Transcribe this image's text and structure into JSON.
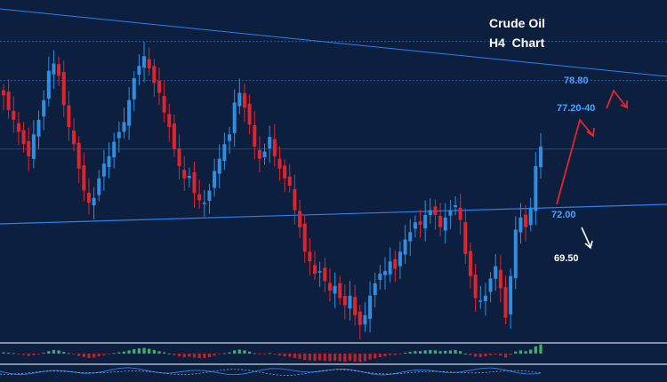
{
  "colors": {
    "background": "#0c1f3f",
    "bull_candle": "#2e8fe0",
    "bear_candle": "#e0242c",
    "trendline": "#2f7fe8",
    "level_line": "#3a78c8",
    "level_label": "#4aa3ff",
    "arrow_up": "#e3262e",
    "arrow_down": "#ffffff",
    "osc_positive": "#3bb36a",
    "osc_negative": "#b8242c",
    "osc_line": "#2f7fe8",
    "title_text": "#ffffff"
  },
  "chart_data": {
    "type": "candlestick",
    "title_line1": "Crude Oil",
    "title_line2": "H4  Chart",
    "levels": [
      {
        "value": 78.8,
        "label": "78.80"
      },
      {
        "value": 77.3,
        "label": "77.20-40"
      },
      {
        "value": 72.0,
        "label": "72.00"
      },
      {
        "value": 69.5,
        "label": "69.50"
      }
    ],
    "horizontal_grid_prices": [
      79.0,
      77.4,
      74.6
    ],
    "price_range": [
      66.7,
      80.7
    ],
    "close_path": [
      76.8,
      76.2,
      75.8,
      75.3,
      74.8,
      74.3,
      75.2,
      75.8,
      76.6,
      77.8,
      78.1,
      77.6,
      76.4,
      75.5,
      74.8,
      73.8,
      72.9,
      72.4,
      72.6,
      73.4,
      74.0,
      74.3,
      74.9,
      75.3,
      75.7,
      76.6,
      77.5,
      78.0,
      78.4,
      77.9,
      77.3,
      76.9,
      76.1,
      75.5,
      74.6,
      73.9,
      73.4,
      73.5,
      72.8,
      72.5,
      72.4,
      72.9,
      73.7,
      74.2,
      74.8,
      75.2,
      76.5,
      76.9,
      76.3,
      75.6,
      74.7,
      74.2,
      74.5,
      75.1,
      74.3,
      73.8,
      73.4,
      73.1,
      72.1,
      71.4,
      70.4,
      70.0,
      69.5,
      69.6,
      69.2,
      68.8,
      69.0,
      68.5,
      68.2,
      68.6,
      67.8,
      67.4,
      67.8,
      68.6,
      69.1,
      69.5,
      69.6,
      70.0,
      69.7,
      70.4,
      70.9,
      71.2,
      71.6,
      71.5,
      71.9,
      72.1,
      71.9,
      71.4,
      71.8,
      72.1,
      72.3,
      71.7,
      70.3,
      69.4,
      68.5,
      68.4,
      68.6,
      69.3,
      69.8,
      68.9,
      67.7,
      69.4,
      71.3,
      71.8,
      71.4,
      72.2,
      73.9,
      74.7
    ],
    "oscillator": [
      0.3,
      0.2,
      0.1,
      -0.1,
      -0.3,
      -0.6,
      -0.4,
      -0.1,
      0.2,
      0.6,
      0.9,
      0.8,
      0.4,
      0.1,
      -0.2,
      -0.6,
      -0.9,
      -1.1,
      -1.0,
      -0.7,
      -0.4,
      -0.2,
      0.1,
      0.3,
      0.5,
      0.8,
      1.1,
      1.3,
      1.4,
      1.2,
      0.9,
      0.6,
      0.3,
      0.0,
      -0.4,
      -0.7,
      -0.9,
      -0.8,
      -1.0,
      -1.1,
      -1.1,
      -0.9,
      -0.5,
      -0.2,
      0.1,
      0.3,
      0.8,
      1.0,
      0.8,
      0.5,
      0.1,
      -0.2,
      -0.1,
      0.1,
      -0.2,
      -0.5,
      -0.7,
      -0.8,
      -1.1,
      -1.3,
      -1.6,
      -1.7,
      -1.8,
      -1.7,
      -1.8,
      -1.9,
      -1.8,
      -1.9,
      -2.0,
      -1.8,
      -2.0,
      -2.1,
      -1.9,
      -1.5,
      -1.2,
      -0.9,
      -0.7,
      -0.4,
      -0.4,
      -0.1,
      0.2,
      0.4,
      0.6,
      0.6,
      0.8,
      0.9,
      0.8,
      0.6,
      0.7,
      0.8,
      0.9,
      0.6,
      0.0,
      -0.4,
      -0.8,
      -0.9,
      -0.7,
      -0.4,
      -0.2,
      -0.5,
      -1.0,
      -0.3,
      0.5,
      0.8,
      0.6,
      1.0,
      1.8,
      2.3
    ]
  }
}
